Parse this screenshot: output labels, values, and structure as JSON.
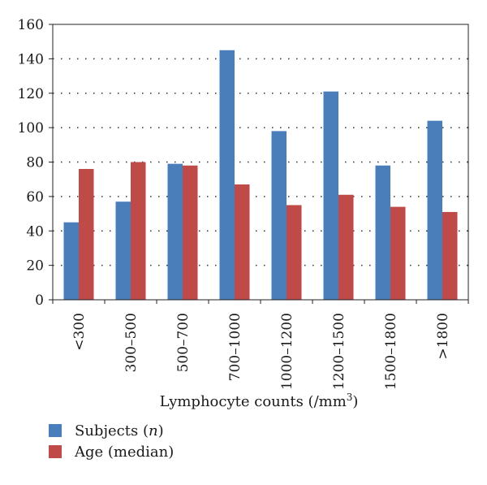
{
  "chart_data": {
    "type": "bar",
    "categories": [
      "<300",
      "300–500",
      "500–700",
      "700–1000",
      "1000–1200",
      "1200–1500",
      "1500–1800",
      ">1800"
    ],
    "series": [
      {
        "name": "Subjects (n)",
        "values": [
          45,
          57,
          79,
          145,
          98,
          121,
          78,
          104
        ],
        "color": "#4a7ebb"
      },
      {
        "name": "Age (median)",
        "values": [
          76,
          80,
          78,
          67,
          55,
          61,
          54,
          51
        ],
        "color": "#be4b48"
      }
    ],
    "xlabel": {
      "text": "Lymphocyte counts (/mm",
      "superscript": "3",
      "suffix": ")"
    },
    "ylabel": "",
    "ylim": [
      0,
      160
    ],
    "yticks": [
      "0",
      "20",
      "40",
      "60",
      "80",
      "100",
      "120",
      "140",
      "160"
    ],
    "grid": "dotted-horizontal",
    "legend": {
      "placement": "bottom-left",
      "items": [
        {
          "label": "Subjects (",
          "italic": "n",
          "suffix": ")"
        },
        {
          "label": "Age (median)",
          "italic": "",
          "suffix": ""
        }
      ]
    }
  }
}
